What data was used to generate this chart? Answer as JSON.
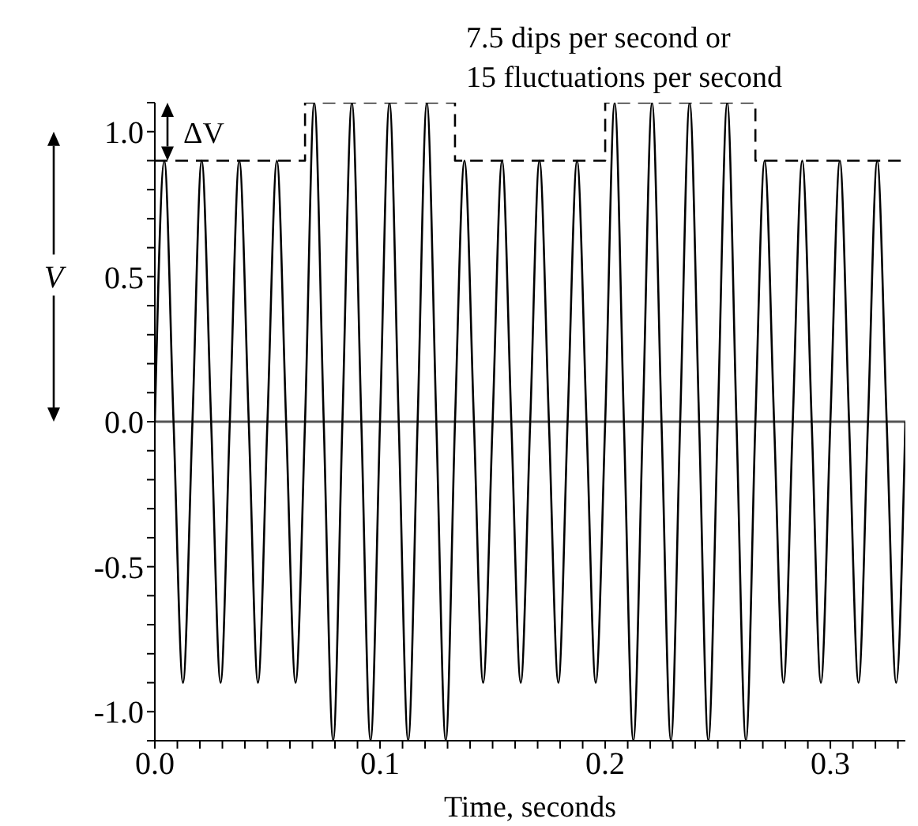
{
  "chart_data": {
    "type": "line",
    "xlabel": "Time, seconds",
    "ylabel": "V",
    "xlim": [
      0,
      0.3333
    ],
    "ylim": [
      -1.1,
      1.1
    ],
    "xticks": [
      {
        "value": 0,
        "label": "0.0"
      },
      {
        "value": 0.01,
        "label": null
      },
      {
        "value": 0.02,
        "label": null
      },
      {
        "value": 0.03,
        "label": null
      },
      {
        "value": 0.04,
        "label": null
      },
      {
        "value": 0.05,
        "label": null
      },
      {
        "value": 0.06,
        "label": null
      },
      {
        "value": 0.07,
        "label": null
      },
      {
        "value": 0.08,
        "label": null
      },
      {
        "value": 0.09,
        "label": null
      },
      {
        "value": 0.1,
        "label": "0.1"
      },
      {
        "value": 0.11,
        "label": null
      },
      {
        "value": 0.12,
        "label": null
      },
      {
        "value": 0.13,
        "label": null
      },
      {
        "value": 0.14,
        "label": null
      },
      {
        "value": 0.15,
        "label": null
      },
      {
        "value": 0.16,
        "label": null
      },
      {
        "value": 0.17,
        "label": null
      },
      {
        "value": 0.18,
        "label": null
      },
      {
        "value": 0.19,
        "label": null
      },
      {
        "value": 0.2,
        "label": "0.2"
      },
      {
        "value": 0.21,
        "label": null
      },
      {
        "value": 0.22,
        "label": null
      },
      {
        "value": 0.23,
        "label": null
      },
      {
        "value": 0.24,
        "label": null
      },
      {
        "value": 0.25,
        "label": null
      },
      {
        "value": 0.26,
        "label": null
      },
      {
        "value": 0.27,
        "label": null
      },
      {
        "value": 0.28,
        "label": null
      },
      {
        "value": 0.29,
        "label": null
      },
      {
        "value": 0.3,
        "label": "0.3"
      },
      {
        "value": 0.31,
        "label": null
      },
      {
        "value": 0.32,
        "label": null
      },
      {
        "value": 0.33,
        "label": null
      }
    ],
    "yticks": [
      {
        "value": -1.1,
        "label": null
      },
      {
        "value": -1,
        "label": "-1.0"
      },
      {
        "value": -0.9,
        "label": null
      },
      {
        "value": -0.8,
        "label": null
      },
      {
        "value": -0.7,
        "label": null
      },
      {
        "value": -0.6,
        "label": null
      },
      {
        "value": -0.5,
        "label": "-0.5"
      },
      {
        "value": -0.4,
        "label": null
      },
      {
        "value": -0.3,
        "label": null
      },
      {
        "value": -0.2,
        "label": null
      },
      {
        "value": -0.1,
        "label": null
      },
      {
        "value": 0,
        "label": "0.0"
      },
      {
        "value": 0.1,
        "label": null
      },
      {
        "value": 0.2,
        "label": null
      },
      {
        "value": 0.3,
        "label": null
      },
      {
        "value": 0.4,
        "label": null
      },
      {
        "value": 0.5,
        "label": "0.5"
      },
      {
        "value": 0.6,
        "label": null
      },
      {
        "value": 0.7,
        "label": null
      },
      {
        "value": 0.8,
        "label": null
      },
      {
        "value": 0.9,
        "label": null
      },
      {
        "value": 1,
        "label": "1.0"
      },
      {
        "value": 1.1,
        "label": null
      }
    ],
    "grid": false,
    "legend": false,
    "marker": "none",
    "ref_lines": [
      {
        "axis": "y",
        "value": 0,
        "color": "#555555"
      }
    ],
    "annotations": [
      "7.5 dips per second or",
      "15 fluctuations per second",
      "ΔV"
    ],
    "series": [
      {
        "color": "#000000",
        "line_style": "solid",
        "x": [
          0,
          0.0042,
          0.0083,
          0.0125,
          0.0167,
          0.0208,
          0.025,
          0.0292,
          0.0333,
          0.0375,
          0.0417,
          0.0458,
          0.05,
          0.0542,
          0.0583,
          0.0625,
          0.0667,
          0.0708,
          0.075,
          0.0792,
          0.0833,
          0.0875,
          0.0917,
          0.0958,
          0.1,
          0.1042,
          0.1083,
          0.1125,
          0.1167,
          0.1208,
          0.125,
          0.1292,
          0.1333,
          0.1375,
          0.1417,
          0.1458,
          0.15,
          0.1542,
          0.1583,
          0.1625,
          0.1667,
          0.1708,
          0.175,
          0.1792,
          0.1833,
          0.1875,
          0.1917,
          0.1958,
          0.2,
          0.2042,
          0.2083,
          0.2125,
          0.2167,
          0.2208,
          0.225,
          0.2292,
          0.2333,
          0.2375,
          0.2417,
          0.2458,
          0.25,
          0.2542,
          0.2583,
          0.2625,
          0.2667,
          0.2708,
          0.275,
          0.2792,
          0.2833,
          0.2875,
          0.2917,
          0.2958,
          0.3,
          0.3042,
          0.3083,
          0.3125,
          0.3167,
          0.3208,
          0.325,
          0.3292,
          0.3333
        ],
        "values": [
          0,
          0.9,
          0,
          -0.9,
          0,
          0.9,
          0,
          -0.9,
          0,
          0.9,
          0,
          -0.9,
          0,
          0.9,
          0,
          -0.9,
          0,
          1.1,
          0,
          -1.1,
          0,
          1.1,
          0,
          -1.1,
          0,
          1.1,
          0,
          -1.1,
          0,
          1.1,
          0,
          -1.1,
          0,
          0.9,
          0,
          -0.9,
          0,
          0.9,
          0,
          -0.9,
          0,
          0.9,
          0,
          -0.9,
          0,
          0.9,
          0,
          -0.9,
          0,
          1.1,
          0,
          -1.1,
          0,
          1.1,
          0,
          -1.1,
          0,
          1.1,
          0,
          -1.1,
          0,
          1.1,
          0,
          -1.1,
          0,
          0.9,
          0,
          -0.9,
          0,
          0.9,
          0,
          -0.9,
          0,
          0.9,
          0,
          -0.9,
          0,
          0.9,
          0,
          -0.9,
          0
        ]
      },
      {
        "type": "step",
        "color": "#000000",
        "line_style": "dashed",
        "x": [
          0,
          0.0667,
          0.1333,
          0.2,
          0.2667,
          0.3333
        ],
        "values": [
          0.9,
          1.1,
          0.9,
          1.1,
          0.9,
          0.9
        ]
      }
    ]
  }
}
